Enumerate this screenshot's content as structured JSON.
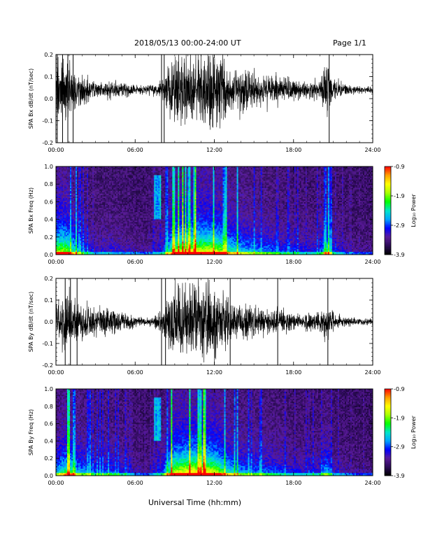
{
  "header": {
    "title": "2018/05/13  00:00-24:00 UT",
    "page": "Page 1/1"
  },
  "footer": {
    "xlabel": "Universal Time (hh:mm)"
  },
  "colors": {
    "trace": "#000000",
    "colormap": [
      "#000000",
      "#2a0a55",
      "#5a1a9a",
      "#0000ff",
      "#00a6ff",
      "#00e6c8",
      "#00ff00",
      "#a8ff00",
      "#ffff00",
      "#ffa000",
      "#ff0000"
    ]
  },
  "chart_data": [
    {
      "id": "bx-timeseries",
      "type": "line",
      "ylabel": "SPA Bx dB/dt (nT/sec)",
      "xlim_hours": [
        0,
        24
      ],
      "ylim": [
        -0.2,
        0.2
      ],
      "xticks": [
        "00:00",
        "06:00",
        "12:00",
        "18:00",
        "24:00"
      ],
      "yticks": [
        "-0.2",
        "-0.1",
        "0.0",
        "0.1",
        "0.2"
      ],
      "yticks_values": [
        -0.2,
        -0.1,
        0.0,
        0.1,
        0.2
      ],
      "envelope": {
        "hour": [
          0,
          0.5,
          1.0,
          1.5,
          2.0,
          3.0,
          4.0,
          5.0,
          6.0,
          7.0,
          8.0,
          8.5,
          9.0,
          10.0,
          11.0,
          12.0,
          12.5,
          13.0,
          14.0,
          15.0,
          16.0,
          17.0,
          18.0,
          19.0,
          20.0,
          20.5,
          21.0,
          22.0,
          23.0,
          24.0
        ],
        "half_amplitude": [
          0.2,
          0.2,
          0.18,
          0.12,
          0.08,
          0.04,
          0.05,
          0.04,
          0.03,
          0.025,
          0.05,
          0.12,
          0.2,
          0.22,
          0.22,
          0.22,
          0.2,
          0.15,
          0.12,
          0.1,
          0.09,
          0.07,
          0.06,
          0.05,
          0.06,
          0.15,
          0.06,
          0.03,
          0.02,
          0.02
        ],
        "baseline": 0.04
      },
      "spikes_hours": [
        0.1,
        0.5,
        0.9,
        1.3,
        8.0,
        8.2,
        20.7
      ]
    },
    {
      "id": "bx-spectrogram",
      "type": "heatmap",
      "ylabel": "SPA Bx Freq (Hz)",
      "xlim_hours": [
        0,
        24
      ],
      "ylim": [
        0.0,
        1.0
      ],
      "xticks": [
        "00:00",
        "06:00",
        "12:00",
        "18:00",
        "24:00"
      ],
      "yticks": [
        "0.0",
        "0.2",
        "0.4",
        "0.6",
        "0.8",
        "1.0"
      ],
      "yticks_values": [
        0.0,
        0.2,
        0.4,
        0.6,
        0.8,
        1.0
      ],
      "colorbar": {
        "label": "Log₁₀ Power",
        "range": [
          -3.9,
          -0.9
        ],
        "ticks": [
          "-0.9",
          "-1.9",
          "-2.9",
          "-3.9"
        ],
        "ticks_values": [
          -0.9,
          -1.9,
          -2.9,
          -3.9
        ]
      }
    },
    {
      "id": "by-timeseries",
      "type": "line",
      "ylabel": "SPA By dB/dt (nT/sec)",
      "xlim_hours": [
        0,
        24
      ],
      "ylim": [
        -0.2,
        0.2
      ],
      "xticks": [
        "00:00",
        "06:00",
        "12:00",
        "18:00",
        "24:00"
      ],
      "yticks": [
        "-0.2",
        "-0.1",
        "0.0",
        "0.1",
        "0.2"
      ],
      "yticks_values": [
        -0.2,
        -0.1,
        0.0,
        0.1,
        0.2
      ],
      "envelope": {
        "hour": [
          0,
          0.5,
          1.0,
          1.5,
          2.0,
          3.0,
          4.0,
          5.0,
          6.0,
          7.0,
          8.0,
          8.5,
          9.0,
          10.0,
          11.0,
          12.0,
          12.5,
          13.0,
          14.0,
          15.0,
          16.0,
          17.0,
          18.0,
          19.0,
          20.0,
          20.5,
          21.0,
          22.0,
          23.0,
          24.0
        ],
        "half_amplitude": [
          0.1,
          0.14,
          0.18,
          0.12,
          0.1,
          0.07,
          0.08,
          0.06,
          0.03,
          0.02,
          0.06,
          0.15,
          0.22,
          0.24,
          0.24,
          0.22,
          0.18,
          0.14,
          0.1,
          0.09,
          0.08,
          0.07,
          0.05,
          0.05,
          0.06,
          0.12,
          0.05,
          0.03,
          0.02,
          0.02
        ],
        "baseline": 0.0
      },
      "spikes_hours": [
        0.7,
        1.1,
        1.6,
        8.0,
        8.3,
        13.2,
        16.8,
        20.6
      ]
    },
    {
      "id": "by-spectrogram",
      "type": "heatmap",
      "ylabel": "SPA By Freq (Hz)",
      "xlim_hours": [
        0,
        24
      ],
      "ylim": [
        0.0,
        1.0
      ],
      "xticks": [
        "00:00",
        "06:00",
        "12:00",
        "18:00",
        "24:00"
      ],
      "yticks": [
        "0.0",
        "0.2",
        "0.4",
        "0.6",
        "0.8",
        "1.0"
      ],
      "yticks_values": [
        0.0,
        0.2,
        0.4,
        0.6,
        0.8,
        1.0
      ],
      "colorbar": {
        "label": "Log₁₀ Power",
        "range": [
          -3.9,
          -0.9
        ],
        "ticks": [
          "-0.9",
          "-1.9",
          "-2.9",
          "-3.9"
        ],
        "ticks_values": [
          -0.9,
          -1.9,
          -2.9,
          -3.9
        ]
      }
    }
  ]
}
